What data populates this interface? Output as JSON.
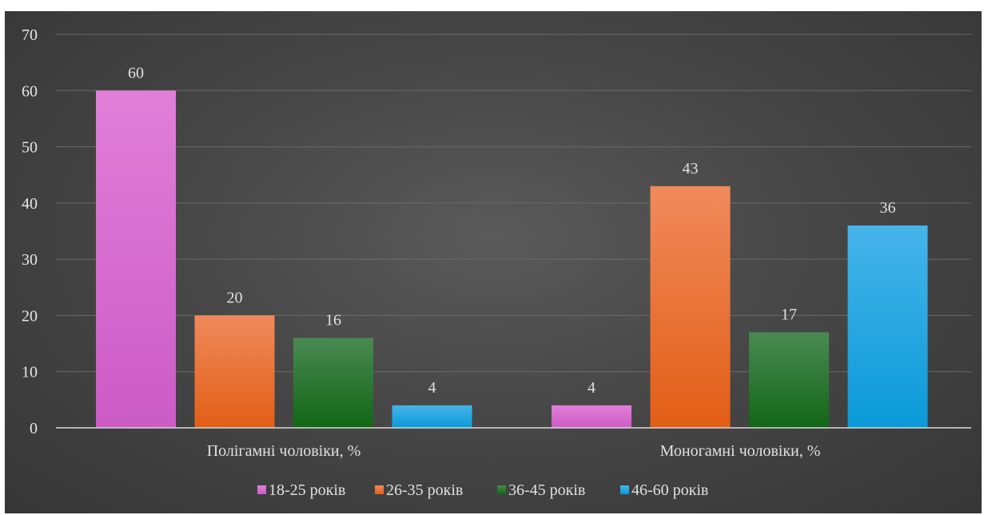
{
  "chart_data": {
    "type": "bar",
    "title": "",
    "xlabel": "",
    "ylabel": "",
    "categories": [
      "Полігамні чоловіки, %",
      "Моногамні чоловіки, %"
    ],
    "series": [
      {
        "name": "18-25 років",
        "values": [
          60,
          4
        ]
      },
      {
        "name": "26-35 років",
        "values": [
          20,
          43
        ]
      },
      {
        "name": "36-45 років",
        "values": [
          16,
          17
        ]
      },
      {
        "name": "46-60 років",
        "values": [
          4,
          36
        ]
      }
    ],
    "ylim": [
      0,
      70
    ],
    "yticks": [
      0,
      10,
      20,
      30,
      40,
      50,
      60,
      70
    ],
    "grid": true,
    "legend_position": "bottom",
    "data_labels": true
  },
  "colors": {
    "series": [
      {
        "top": "#e07fd8",
        "bottom": "#cc5bc6"
      },
      {
        "top": "#f08a5c",
        "bottom": "#e25e16"
      },
      {
        "top": "#4a8a52",
        "bottom": "#116616"
      },
      {
        "top": "#46b4ea",
        "bottom": "#0a9ad8"
      }
    ],
    "grid": "#6a6a6a",
    "axis": "#d9d9d9"
  }
}
